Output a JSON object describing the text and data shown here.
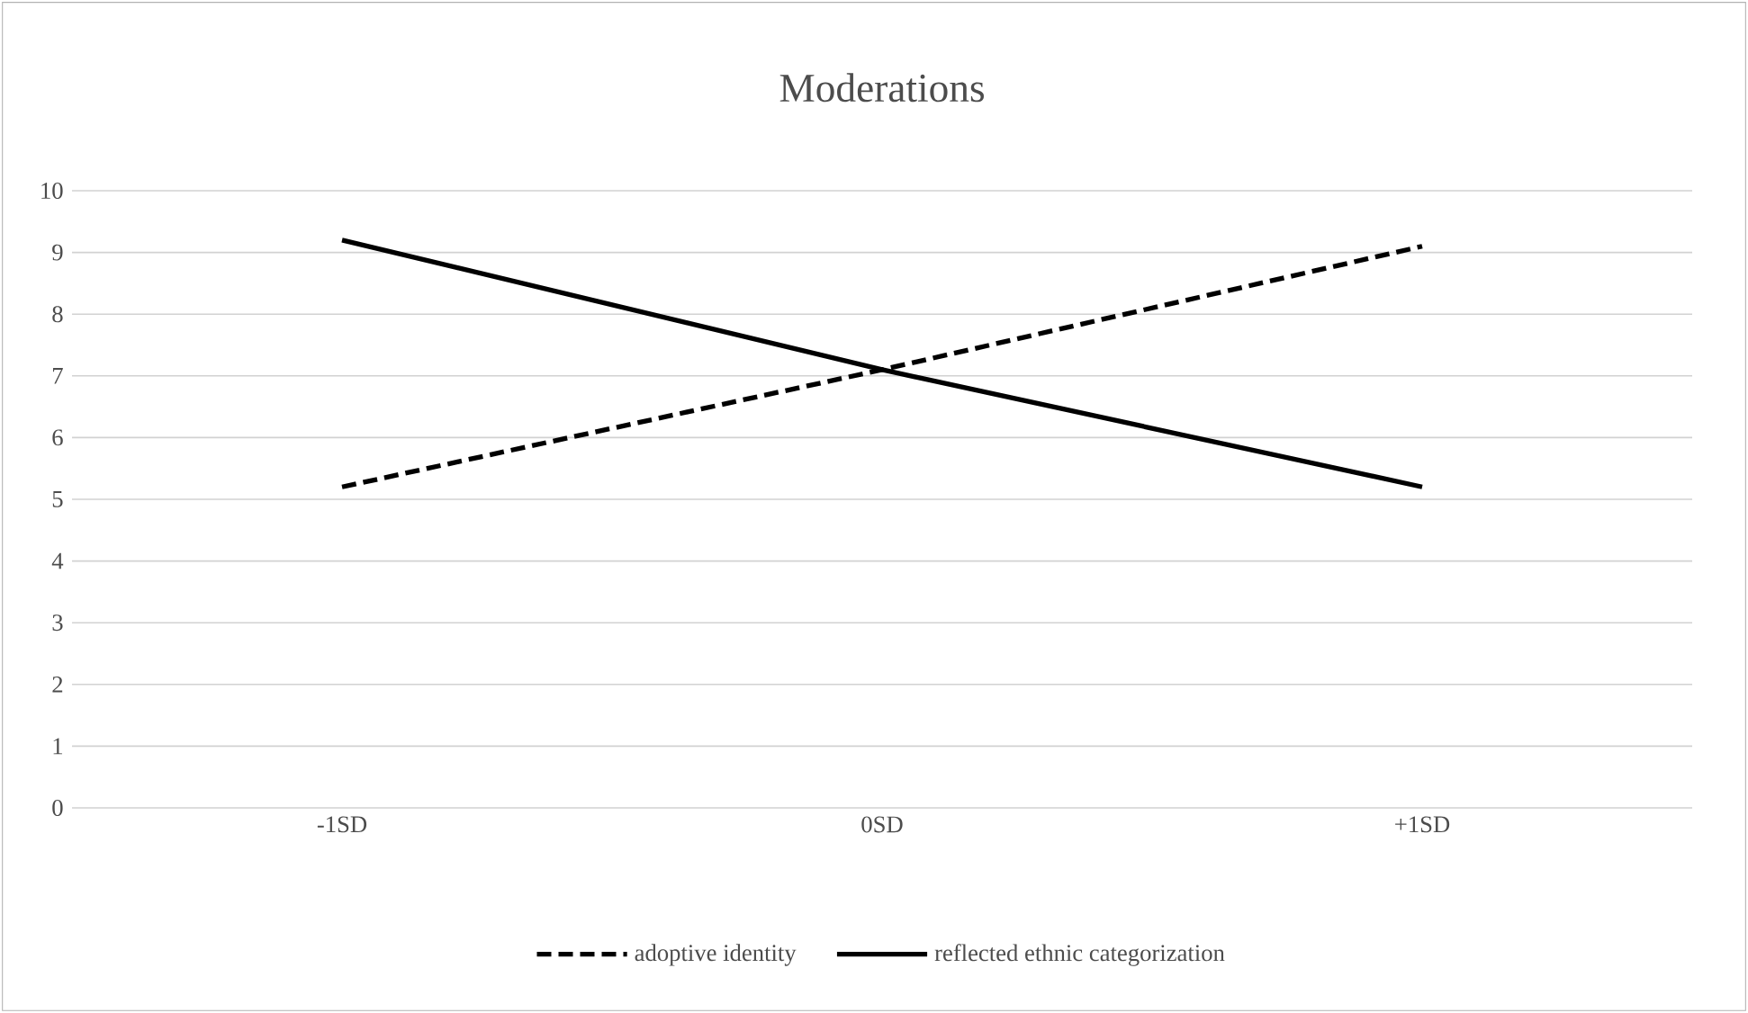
{
  "chart_data": {
    "type": "line",
    "title": "Moderations",
    "categories": [
      "-1SD",
      "0SD",
      "+1SD"
    ],
    "series": [
      {
        "name": "adoptive identity",
        "color": "#000000",
        "line_style": "dashed",
        "values": [
          5.2,
          7.1,
          9.1
        ]
      },
      {
        "name": "reflected ethnic categorization",
        "color": "#000000",
        "line_style": "solid",
        "values": [
          9.2,
          7.1,
          5.2
        ]
      }
    ],
    "ylim": [
      0,
      10
    ],
    "yticks": [
      0,
      1,
      2,
      3,
      4,
      5,
      6,
      7,
      8,
      9,
      10
    ],
    "grid": "y",
    "legend": "bottom"
  }
}
